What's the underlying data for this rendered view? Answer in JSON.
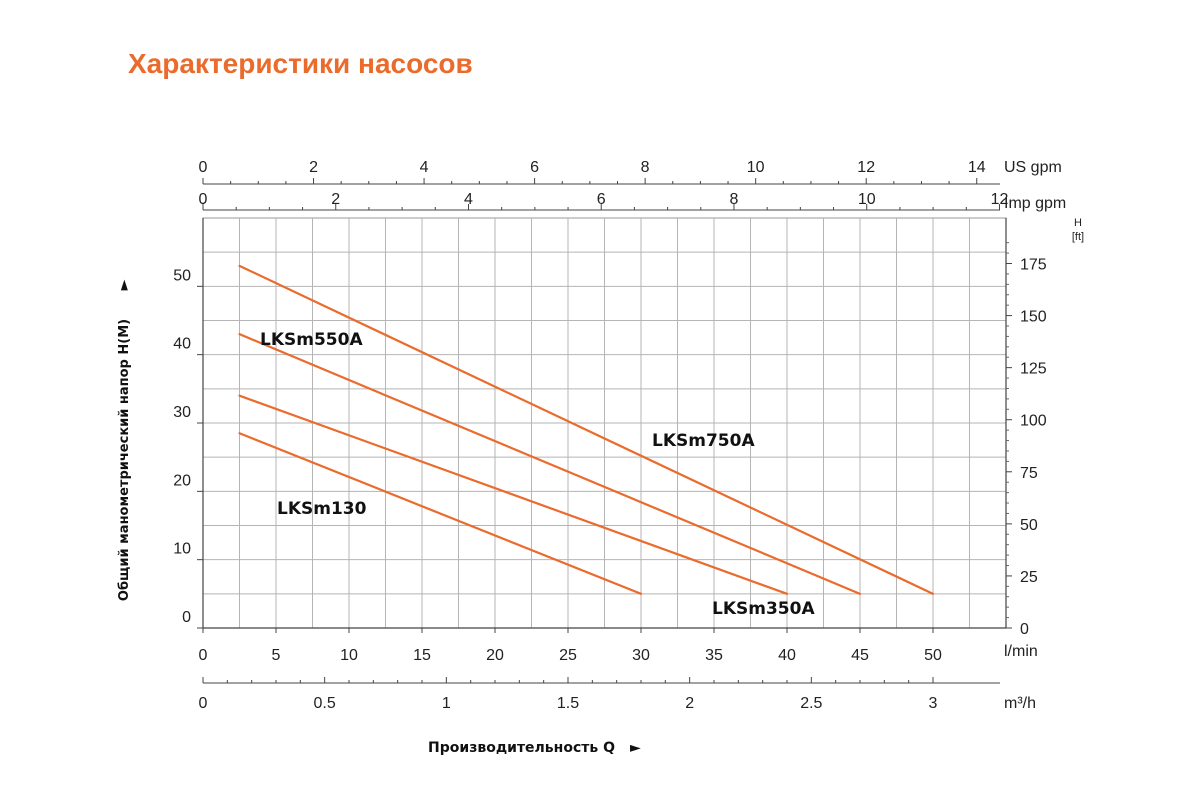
{
  "page_title": "Характеристики насосов",
  "chart_data": {
    "type": "line",
    "title": "Характеристики насосов",
    "xlabel": "Производительность Q",
    "ylabel": "Общий манометрический напор H(M)",
    "arrow_glyph": "►",
    "x_unit": "l/min",
    "xlim": [
      0,
      55
    ],
    "ylim": [
      0,
      60
    ],
    "x_ticks": [
      0,
      5,
      10,
      15,
      20,
      25,
      30,
      35,
      40,
      45,
      50
    ],
    "x_tick_labels": [
      "0",
      "5",
      "10",
      "15",
      "20",
      "25",
      "30",
      "35",
      "40",
      "45",
      "50"
    ],
    "y_ticks": [
      0,
      10,
      20,
      30,
      40,
      50
    ],
    "y_tick_labels": [
      "0",
      "10",
      "20",
      "30",
      "40",
      "50"
    ],
    "grid": true,
    "series": [
      {
        "name": "LKSm750A",
        "color": "#ea6b2c",
        "x": [
          2.5,
          50
        ],
        "y": [
          53,
          5
        ]
      },
      {
        "name": "LKSm550A",
        "color": "#ea6b2c",
        "x": [
          2.5,
          45
        ],
        "y": [
          43,
          5
        ]
      },
      {
        "name": "LKSm350A",
        "color": "#ea6b2c",
        "x": [
          2.5,
          40
        ],
        "y": [
          34,
          5
        ]
      },
      {
        "name": "LKSm130",
        "color": "#ea6b2c",
        "x": [
          2.5,
          30
        ],
        "y": [
          28.5,
          5
        ]
      }
    ],
    "secondary_axes": {
      "us_gpm": {
        "unit": "US gpm",
        "ticks": [
          0,
          2,
          4,
          6,
          8,
          10,
          12,
          14
        ],
        "tick_labels": [
          "0",
          "2",
          "4",
          "6",
          "8",
          "10",
          "12",
          "14"
        ]
      },
      "imp_gpm": {
        "unit": "Imp gpm",
        "ticks": [
          0,
          2,
          4,
          6,
          8,
          10,
          12
        ],
        "tick_labels": [
          "0",
          "2",
          "4",
          "6",
          "8",
          "10",
          "12"
        ]
      },
      "m3h": {
        "unit": "m³/h",
        "ticks": [
          0,
          0.5,
          1,
          1.5,
          2,
          2.5,
          3
        ],
        "tick_labels": [
          "0",
          "0.5",
          "1",
          "1.5",
          "2",
          "2.5",
          "3"
        ]
      },
      "head_ft": {
        "unit_top": "H",
        "unit_bottom": "[ft]",
        "ticks": [
          0,
          25,
          50,
          75,
          100,
          125,
          150,
          175
        ],
        "tick_labels": [
          "0",
          "25",
          "50",
          "75",
          "100",
          "125",
          "150",
          "175"
        ]
      }
    }
  }
}
